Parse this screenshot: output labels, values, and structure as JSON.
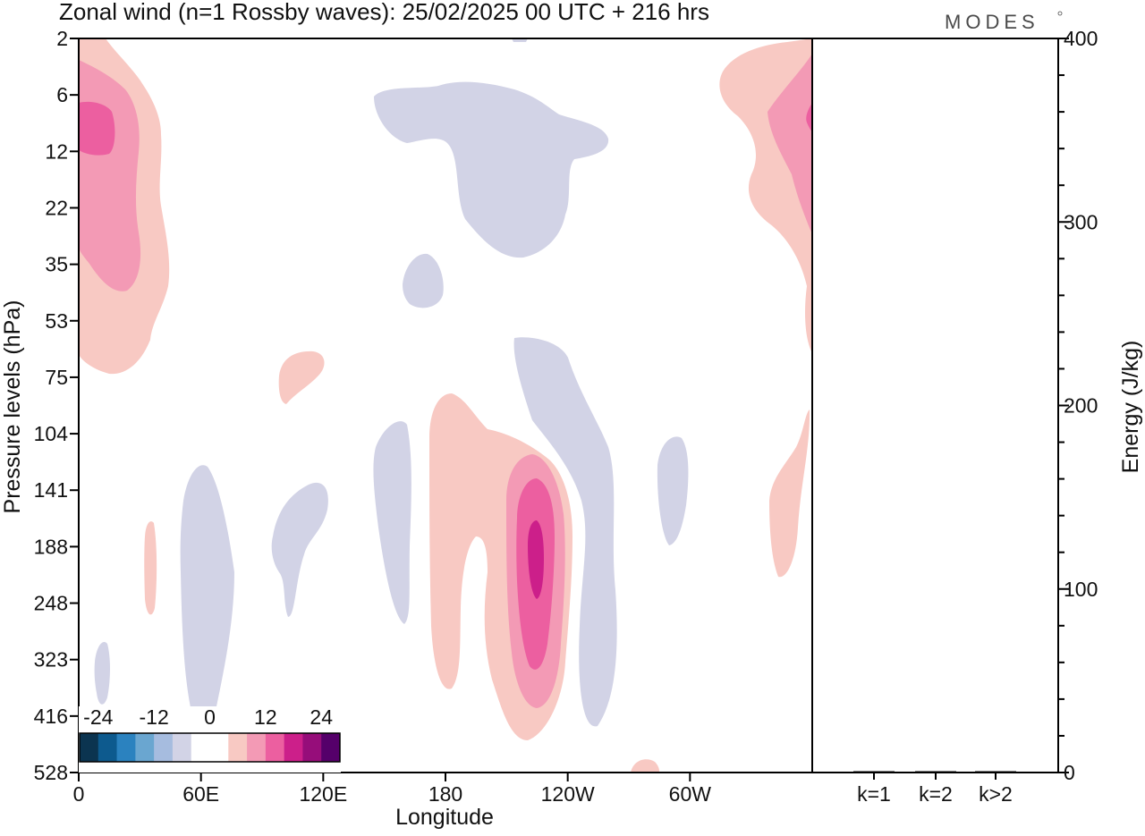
{
  "brand": "MODES",
  "colors": {
    "neg_very_light": "#d2d3e6",
    "pos_light": "#f8c9c3",
    "pos_medium": "#f39ab5",
    "pos_strong": "#ec5fa0",
    "pos_very_strong": "#cc1f8a",
    "axis": "#000000",
    "background": "#ffffff"
  },
  "chart_data": [
    {
      "type": "heatmap",
      "title": "Zonal wind (n=1 Rossby waves):  25/02/2025  00 UTC  + 216 hrs",
      "xlabel": "Longitude",
      "ylabel": "Pressure levels (hPa)",
      "x_ticks": [
        "0",
        "60E",
        "120E",
        "180",
        "120W",
        "60W"
      ],
      "x_range_deg_east": [
        0,
        360
      ],
      "y_ticks_hPa": [
        "2",
        "6",
        "12",
        "22",
        "35",
        "53",
        "75",
        "104",
        "141",
        "188",
        "248",
        "323",
        "416",
        "528"
      ],
      "y_scale": "pressure levels (top to bottom: 2 to 528 hPa)",
      "colorbar": {
        "tick_labels": [
          "-24",
          "-12",
          "0",
          "12",
          "24"
        ],
        "colors": [
          "#0b3450",
          "#0d5a8e",
          "#2b82bf",
          "#6aa6d0",
          "#a6bcdf",
          "#d2d3e6",
          "#ffffff",
          "#ffffff",
          "#f8c9c3",
          "#f39ab5",
          "#ec5fa0",
          "#cc1f8a",
          "#960d7a",
          "#55006a"
        ]
      },
      "notable_features": [
        {
          "sign": "positive",
          "max_level": "+16 to +20",
          "lon_deg_east": 230,
          "pressure_hPa": 188
        },
        {
          "sign": "positive",
          "max_level": "+12 to +16",
          "lon_deg_east": 5,
          "pressure_hPa": 10
        },
        {
          "sign": "positive",
          "max_level": "+8 to +12",
          "lon_deg_east": 358,
          "pressure_hPa": 12
        },
        {
          "sign": "negative",
          "max_level": "-4 to 0",
          "lon_deg_east": 200,
          "pressure_hPa": 10
        }
      ]
    },
    {
      "type": "bar",
      "categories": [
        "k=1",
        "k=2",
        "k>2"
      ],
      "values": [
        0.2,
        0.6,
        0.6
      ],
      "ylabel": "Energy (J/kg)",
      "ylim": [
        0,
        400
      ],
      "y_ticks": [
        "0",
        "100",
        "200",
        "300",
        "400"
      ]
    }
  ]
}
